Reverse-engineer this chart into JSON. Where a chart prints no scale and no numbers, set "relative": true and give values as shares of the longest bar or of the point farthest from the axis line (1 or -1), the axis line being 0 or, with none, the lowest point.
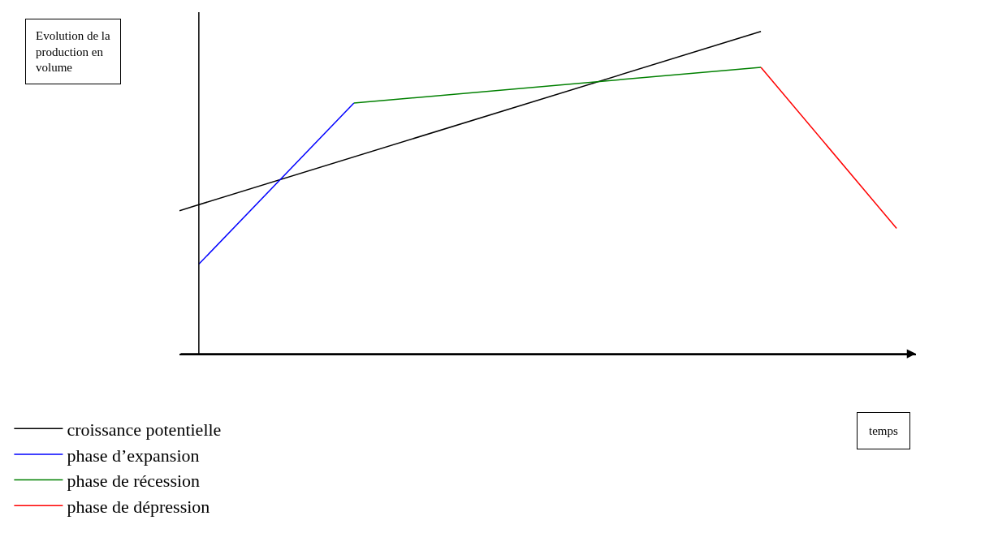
{
  "chart_data": {
    "type": "line",
    "relative": true,
    "annotations": [
      "Evolution de la production en volume",
      "temps"
    ],
    "legend": "bottom left",
    "line_style": "solid",
    "marker": "none",
    "categories": [
      null,
      null,
      null,
      null,
      null,
      null,
      null,
      null,
      null,
      null,
      null,
      null,
      null,
      null,
      null,
      null,
      null,
      null,
      null,
      null,
      null,
      null,
      null,
      null,
      null,
      null,
      null,
      null,
      null,
      null,
      null,
      null,
      null,
      null,
      null,
      null,
      null,
      null
    ],
    "series": [
      {
        "name": "croissance potentielle",
        "color": "#000000",
        "values": [
          0.444,
          null,
          null,
          null,
          null,
          null,
          null,
          null,
          null,
          null,
          null,
          null,
          null,
          null,
          null,
          null,
          null,
          null,
          null,
          null,
          null,
          null,
          null,
          null,
          null,
          null,
          null,
          null,
          null,
          null,
          1,
          null,
          null,
          null,
          null,
          null,
          null,
          null
        ]
      },
      {
        "name": "phase d’expansion",
        "color": "#0000ff",
        "values": [
          null,
          0.278,
          null,
          null,
          null,
          null,
          null,
          null,
          null,
          0.778,
          null,
          null,
          null,
          null,
          null,
          null,
          null,
          null,
          null,
          null,
          null,
          null,
          null,
          null,
          null,
          null,
          null,
          null,
          null,
          null,
          null,
          null,
          null,
          null,
          null,
          null,
          null,
          null
        ]
      },
      {
        "name": "phase de récession",
        "color": "#008000",
        "values": [
          null,
          null,
          null,
          null,
          null,
          null,
          null,
          null,
          null,
          0.778,
          null,
          null,
          null,
          null,
          null,
          null,
          null,
          null,
          null,
          null,
          null,
          null,
          null,
          null,
          null,
          null,
          null,
          null,
          null,
          null,
          0.889,
          null,
          null,
          null,
          null,
          null,
          null,
          null
        ]
      },
      {
        "name": "phase de dépression",
        "color": "#ff0000",
        "values": [
          null,
          null,
          null,
          null,
          null,
          null,
          null,
          null,
          null,
          null,
          null,
          null,
          null,
          null,
          null,
          null,
          null,
          null,
          null,
          null,
          null,
          null,
          null,
          null,
          null,
          null,
          null,
          null,
          null,
          null,
          0.889,
          null,
          null,
          null,
          null,
          null,
          null,
          0.389
        ]
      }
    ]
  }
}
